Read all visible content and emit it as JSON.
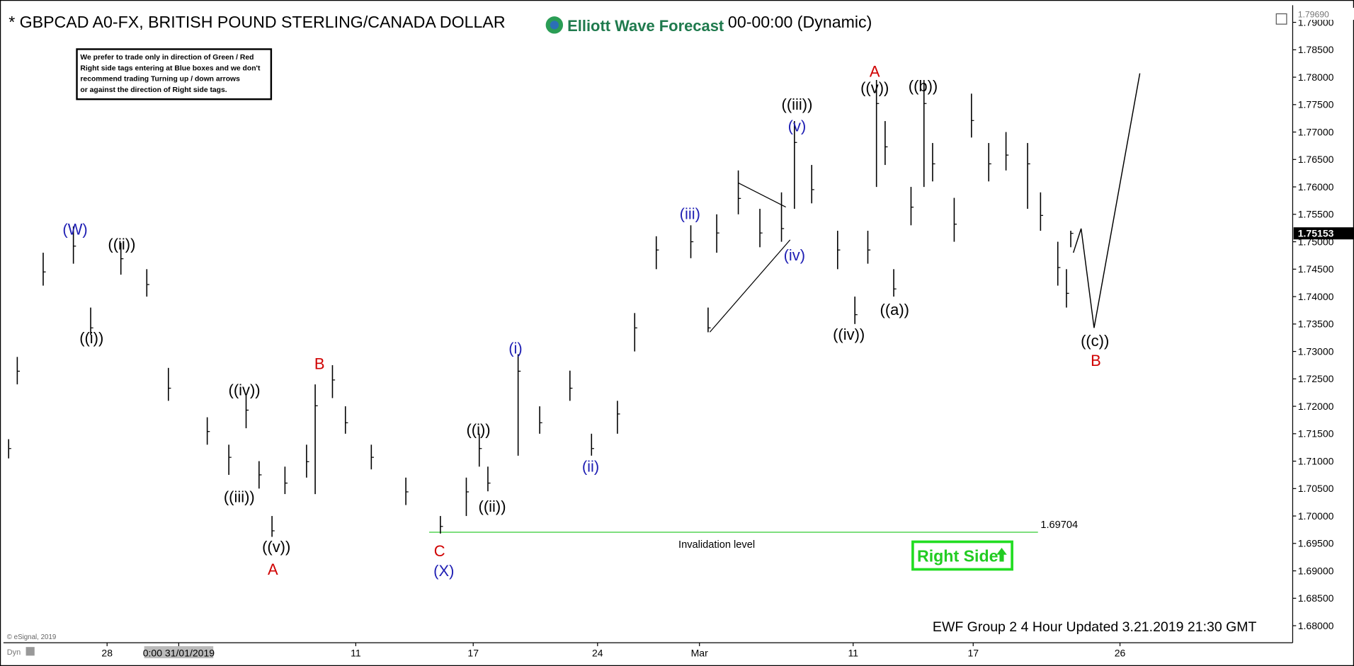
{
  "chart_data": {
    "type": "ohlc",
    "title": "* GBPCAD A0-FX, BRITISH POUND STERLING/CANADA DOLLAR",
    "subtitle": "00-00:00 (Dynamic)",
    "logo": "Elliott Wave Forecast",
    "note": [
      "We prefer to trade only in direction of Green / Red",
      "Right side tags entering at Blue boxes and we don't",
      "recommend trading Turning up / down arrows",
      "or against the direction of Right side tags."
    ],
    "footer": "EWF Group 2 4 Hour Updated 3.21.2019 21:30 GMT",
    "copyright": "© eSignal, 2019",
    "mode": "Dyn",
    "badge": "Right Side",
    "color": "#000000",
    "x": [
      2,
      4,
      10,
      17,
      21,
      28,
      34,
      39,
      48,
      53,
      57,
      60,
      63,
      66,
      71,
      73,
      77,
      80,
      86,
      94,
      102,
      108,
      111,
      113,
      120,
      125,
      132,
      137,
      143,
      147,
      152,
      160,
      164,
      166,
      171,
      176,
      181,
      184,
      188,
      194,
      198,
      201,
      203,
      205,
      207,
      211,
      214,
      216,
      221,
      225,
      229,
      233,
      238,
      241,
      245,
      247,
      248
    ],
    "close": [
      1.7123,
      1.7264,
      1.7445,
      1.7492,
      1.7343,
      1.7469,
      1.7422,
      1.7233,
      1.7154,
      1.7107,
      1.7193,
      1.7075,
      1.6973,
      1.706,
      1.7099,
      1.7201,
      1.7248,
      1.717,
      1.7107,
      1.7044,
      1.6981,
      1.7044,
      1.7123,
      1.706,
      1.7264,
      1.717,
      1.7233,
      1.7123,
      1.7186,
      1.7343,
      1.7485,
      1.75,
      1.7343,
      1.7516,
      1.7579,
      1.7516,
      1.7524,
      1.7681,
      1.7595,
      1.7485,
      1.7367,
      1.7485,
      1.7752,
      1.7673,
      1.7414,
      1.7563,
      1.7752,
      1.7642,
      1.7532,
      1.7721,
      1.7642,
      1.7658,
      1.7642,
      1.7548,
      1.7453,
      1.7406,
      1.75153
    ],
    "high": [
      1.714,
      1.729,
      1.748,
      1.7528,
      1.738,
      1.7498,
      1.745,
      1.727,
      1.718,
      1.713,
      1.722,
      1.71,
      1.7,
      1.709,
      1.713,
      1.724,
      1.7275,
      1.72,
      1.713,
      1.707,
      1.7,
      1.707,
      1.715,
      1.709,
      1.7295,
      1.72,
      1.7265,
      1.715,
      1.721,
      1.737,
      1.751,
      1.753,
      1.738,
      1.755,
      1.763,
      1.756,
      1.759,
      1.772,
      1.764,
      1.752,
      1.74,
      1.752,
      1.7795,
      1.772,
      1.745,
      1.76,
      1.7795,
      1.768,
      1.758,
      1.777,
      1.768,
      1.77,
      1.768,
      1.759,
      1.75,
      1.745,
      1.752
    ],
    "low": [
      1.7105,
      1.724,
      1.742,
      1.746,
      1.733,
      1.744,
      1.74,
      1.721,
      1.713,
      1.7075,
      1.716,
      1.705,
      1.6962,
      1.704,
      1.707,
      1.704,
      1.7215,
      1.715,
      1.7085,
      1.702,
      1.6968,
      1.7,
      1.709,
      1.7045,
      1.711,
      1.715,
      1.721,
      1.711,
      1.715,
      1.73,
      1.745,
      1.747,
      1.7335,
      1.748,
      1.755,
      1.749,
      1.75,
      1.756,
      1.757,
      1.745,
      1.735,
      1.746,
      1.76,
      1.764,
      1.74,
      1.753,
      1.76,
      1.761,
      1.75,
      1.769,
      1.761,
      1.763,
      1.756,
      1.752,
      1.742,
      1.738,
      1.749
    ],
    "projection": {
      "x": [
        248.6,
        250.4,
        253.4,
        264
      ],
      "values": [
        1.748,
        1.7524,
        1.7343,
        1.7807
      ]
    },
    "invalidation": {
      "value": 1.69704,
      "label": "1.69704",
      "text": "Invalidation level",
      "xlim": [
        99.4,
        240.4
      ]
    },
    "price_markers": [
      {
        "value": 1.7969,
        "label": "1.79690"
      },
      {
        "value": 1.75153,
        "label": "1.75153"
      }
    ],
    "xlim": [
      0,
      299.4
    ],
    "ylim": [
      1.6769,
      1.7925
    ],
    "xticks": [
      {
        "value": 24.8,
        "label": "28"
      },
      {
        "value": 41.4,
        "label": "0:00 31/01/2019"
      },
      {
        "value": 82.4,
        "label": "11"
      },
      {
        "value": 109.6,
        "label": "17"
      },
      {
        "value": 138.4,
        "label": "24"
      },
      {
        "value": 162,
        "label": "Mar"
      },
      {
        "value": 197.6,
        "label": "11"
      },
      {
        "value": 225.4,
        "label": "17"
      },
      {
        "value": 259.4,
        "label": "26"
      }
    ],
    "yticks": [
      {
        "value": 1.68,
        "label": "1.68000"
      },
      {
        "value": 1.685,
        "label": "1.68500"
      },
      {
        "value": 1.69,
        "label": "1.69000"
      },
      {
        "value": 1.695,
        "label": "1.69500"
      },
      {
        "value": 1.7,
        "label": "1.70000"
      },
      {
        "value": 1.705,
        "label": "1.70500"
      },
      {
        "value": 1.71,
        "label": "1.71000"
      },
      {
        "value": 1.715,
        "label": "1.71500"
      },
      {
        "value": 1.72,
        "label": "1.72000"
      },
      {
        "value": 1.725,
        "label": "1.72500"
      },
      {
        "value": 1.73,
        "label": "1.73000"
      },
      {
        "value": 1.735,
        "label": "1.73500"
      },
      {
        "value": 1.74,
        "label": "1.74000"
      },
      {
        "value": 1.745,
        "label": "1.74500"
      },
      {
        "value": 1.75,
        "label": "1.75000"
      },
      {
        "value": 1.755,
        "label": "1.75500"
      },
      {
        "value": 1.76,
        "label": "1.76000"
      },
      {
        "value": 1.765,
        "label": "1.76500"
      },
      {
        "value": 1.77,
        "label": "1.77000"
      },
      {
        "value": 1.775,
        "label": "1.77500"
      },
      {
        "value": 1.78,
        "label": "1.78000"
      },
      {
        "value": 1.785,
        "label": "1.78500"
      },
      {
        "value": 1.79,
        "label": "1.79000"
      }
    ],
    "wave_labels": [
      {
        "text": "(W)",
        "color": "#1f1fb4"
      },
      {
        "text": "((i))",
        "color": "#000000"
      },
      {
        "text": "((ii))",
        "color": "#000000"
      },
      {
        "text": "((iv))",
        "color": "#000000"
      },
      {
        "text": "((iii))",
        "color": "#000000"
      },
      {
        "text": "((v))",
        "color": "#000000"
      },
      {
        "text": "A",
        "color": "#d00000"
      },
      {
        "text": "B",
        "color": "#d00000"
      },
      {
        "text": "C",
        "color": "#d00000"
      },
      {
        "text": "(X)",
        "color": "#1f1fb4"
      },
      {
        "text": "((i))",
        "color": "#000000"
      },
      {
        "text": "((ii))",
        "color": "#000000"
      },
      {
        "text": "(i)",
        "color": "#1f1fb4"
      },
      {
        "text": "(ii)",
        "color": "#1f1fb4"
      },
      {
        "text": "(iii)",
        "color": "#1f1fb4"
      },
      {
        "text": "(iv)",
        "color": "#1f1fb4"
      },
      {
        "text": "(v)",
        "color": "#1f1fb4"
      },
      {
        "text": "((iii))",
        "color": "#000000"
      },
      {
        "text": "A",
        "color": "#d00000"
      },
      {
        "text": "((v))",
        "color": "#000000"
      },
      {
        "text": "((b))",
        "color": "#000000"
      },
      {
        "text": "((iv))",
        "color": "#000000"
      },
      {
        "text": "((a))",
        "color": "#000000"
      },
      {
        "text": "((c))",
        "color": "#000000"
      },
      {
        "text": "B",
        "color": "#d00000"
      }
    ]
  }
}
